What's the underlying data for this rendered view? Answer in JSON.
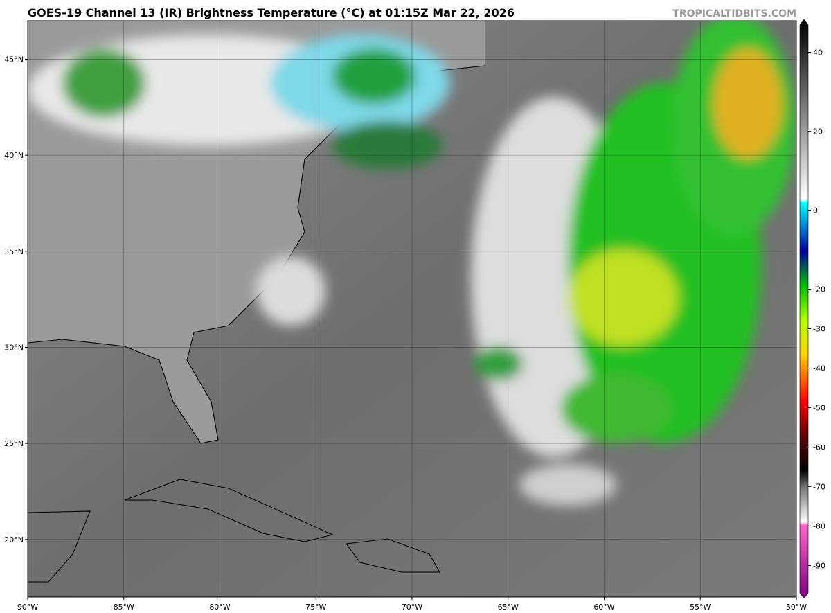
{
  "map": {
    "title": "GOES-19 Channel 13 (IR) Brightness Temperature (°C) at 01:15Z Mar 22, 2026",
    "watermark": "TROPICALTIDBITS.COM",
    "lon_range": [
      -90,
      -50
    ],
    "lat_range": [
      17,
      47
    ],
    "lon_ticks": [
      {
        "value": -90,
        "label": "90°W"
      },
      {
        "value": -85,
        "label": "85°W"
      },
      {
        "value": -80,
        "label": "80°W"
      },
      {
        "value": -75,
        "label": "75°W"
      },
      {
        "value": -70,
        "label": "70°W"
      },
      {
        "value": -65,
        "label": "65°W"
      },
      {
        "value": -60,
        "label": "60°W"
      },
      {
        "value": -55,
        "label": "55°W"
      },
      {
        "value": -50,
        "label": "50°W"
      }
    ],
    "lat_ticks": [
      {
        "value": 45,
        "label": "45°N"
      },
      {
        "value": 40,
        "label": "40°N"
      },
      {
        "value": 35,
        "label": "35°N"
      },
      {
        "value": 30,
        "label": "30°N"
      },
      {
        "value": 25,
        "label": "25°N"
      },
      {
        "value": 20,
        "label": "20°N"
      }
    ],
    "colorbar": {
      "range": [
        -98,
        48
      ],
      "ticks": [
        40,
        20,
        0,
        -20,
        -30,
        -40,
        -50,
        -60,
        -70,
        -80,
        -90
      ]
    }
  }
}
